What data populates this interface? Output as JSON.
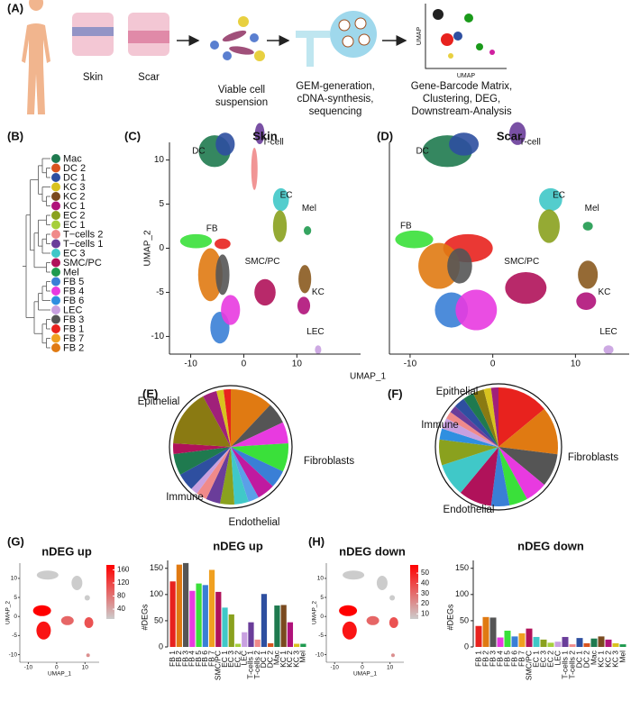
{
  "panel_labels": [
    "(A)",
    "(B)",
    "(C)",
    "(D)",
    "(E)",
    "(F)",
    "(G)",
    "(H)"
  ],
  "workflow": {
    "skin": "Skin",
    "scar": "Scar",
    "step1": [
      "Viable cell",
      "suspension"
    ],
    "step2": [
      "GEM-generation,",
      "cDNA-synthesis,",
      "sequencing"
    ],
    "step3": [
      "Gene-Barcode Matrix,",
      "Clustering, DEG,",
      "Downstream-Analysis"
    ],
    "umap_x": "UMAP",
    "umap_y": "UMAP"
  },
  "clusters": [
    {
      "name": "Mac",
      "color": "#1f7a4f"
    },
    {
      "name": "DC 2",
      "color": "#d9541e"
    },
    {
      "name": "DC 1",
      "color": "#2e4fa0"
    },
    {
      "name": "KC 3",
      "color": "#d8c21e"
    },
    {
      "name": "KC 2",
      "color": "#7a4a1f"
    },
    {
      "name": "KC 1",
      "color": "#b0127a"
    },
    {
      "name": "EC 2",
      "color": "#8aa11e"
    },
    {
      "name": "EC 1",
      "color": "#a6cf3c"
    },
    {
      "name": "T−cells 2",
      "color": "#f08a8a"
    },
    {
      "name": "T−cells 1",
      "color": "#6a3d9a"
    },
    {
      "name": "EC 3",
      "color": "#40c8c8"
    },
    {
      "name": "SMC/PC",
      "color": "#b0125a"
    },
    {
      "name": "Mel",
      "color": "#1f9a4f"
    },
    {
      "name": "FB 5",
      "color": "#3a7fd6"
    },
    {
      "name": "FB 4",
      "color": "#e83ae0"
    },
    {
      "name": "FB 6",
      "color": "#2f8fe0"
    },
    {
      "name": "LEC",
      "color": "#c8a0e0"
    },
    {
      "name": "FB 3",
      "color": "#555555"
    },
    {
      "name": "FB 1",
      "color": "#e8221e"
    },
    {
      "name": "FB 7",
      "color": "#f0a020"
    },
    {
      "name": "FB 2",
      "color": "#e07a12"
    }
  ],
  "chart_data": [
    {
      "type": "umap",
      "title": "Skin",
      "xlabel": "UMAP_1",
      "ylabel": "UMAP_2",
      "xlim": [
        -14,
        22
      ],
      "ylim": [
        -12,
        12
      ],
      "xticks": [
        -10,
        0,
        10
      ],
      "yticks": [
        -10,
        -5,
        0,
        5,
        10
      ],
      "annotations": [
        "DC",
        "T-cell",
        "EC",
        "Mel",
        "FB",
        "SMC/PC",
        "KC",
        "LEC"
      ]
    },
    {
      "type": "umap",
      "title": "Scar",
      "xlim": [
        -12.5,
        16.5
      ],
      "ylim": [
        -12,
        12
      ],
      "xticks": [
        -10,
        0,
        10
      ],
      "annotations": [
        "DC",
        "T-cell",
        "EC",
        "Mel",
        "FB",
        "SMC/PC",
        "KC",
        "LEC"
      ]
    },
    {
      "type": "pie",
      "values": [
        12,
        6,
        6,
        8,
        5,
        5,
        3,
        4,
        4,
        4,
        3,
        2,
        5,
        6,
        3,
        16,
        4,
        2,
        2
      ],
      "colors": [
        "#e07a12",
        "#555555",
        "#e83ae0",
        "#3ae03a",
        "#3a7fd6",
        "#c01aa0",
        "#5aa0e8",
        "#40c8c8",
        "#8aa11e",
        "#6a3d9a",
        "#f08a8a",
        "#c8a0e0",
        "#2e4fa0",
        "#1f7a4f",
        "#b0125a",
        "#8a7a12",
        "#a0207a",
        "#d8c21e",
        "#e8221e"
      ],
      "annotations": [
        "Epithelial",
        "Fibroblasts",
        "Immune",
        "Endothelial"
      ]
    },
    {
      "type": "pie",
      "values": [
        14,
        13,
        9,
        6,
        5,
        5,
        9,
        9,
        7,
        3,
        3,
        2,
        2,
        3,
        3,
        3,
        2,
        2
      ],
      "colors": [
        "#e8221e",
        "#e07a12",
        "#555555",
        "#e83ae0",
        "#3ae03a",
        "#3a7fd6",
        "#b0125a",
        "#40c8c8",
        "#8aa11e",
        "#2f8fe0",
        "#c8a0e0",
        "#f08a8a",
        "#6a3d9a",
        "#2e4fa0",
        "#1f7a4f",
        "#8a7a12",
        "#d8c21e",
        "#a0207a"
      ],
      "annotations": [
        "Epithelial",
        "Immune",
        "Fibroblasts",
        "Endothelial"
      ]
    },
    {
      "type": "feature",
      "title": "nDEG up",
      "xlabel": "UMAP_1",
      "ylabel": "UMAP_2",
      "xlim": [
        -13,
        15
      ],
      "ylim": [
        -12,
        14
      ],
      "xticks": [
        -10,
        0,
        10
      ],
      "yticks": [
        -10,
        -5,
        0,
        5,
        10
      ],
      "colors": [
        "#cccccc",
        "#ff0000"
      ],
      "clim": [
        10,
        175
      ],
      "cticks": [
        40,
        80,
        120,
        160
      ]
    },
    {
      "type": "bar",
      "title": "nDEG up",
      "ylabel": "#DEGs",
      "categories": [
        "FB 1",
        "FB 2",
        "FB 3",
        "FB 4",
        "FB 5",
        "FB 6",
        "FB 7",
        "SMC/PC",
        "EC 1",
        "EC 3",
        "EC 2",
        "LEC",
        "T-cells 1",
        "T-cells 2",
        "DC 1",
        "DC 2",
        "Mac",
        "KC 1",
        "KC 2",
        "KC 3",
        "Mel"
      ],
      "values": [
        125,
        157,
        160,
        107,
        121,
        118,
        147,
        105,
        75,
        62,
        6,
        28,
        47,
        14,
        101,
        7,
        79,
        80,
        47,
        6,
        6
      ],
      "colors": [
        "#e8221e",
        "#e07a12",
        "#555555",
        "#e83ae0",
        "#3ae03a",
        "#3a7fd6",
        "#f0a020",
        "#b0125a",
        "#40c8c8",
        "#8aa11e",
        "#a6cf3c",
        "#c8a0e0",
        "#6a3d9a",
        "#f08a8a",
        "#2e4fa0",
        "#d9541e",
        "#1f7a4f",
        "#7a4a1f",
        "#b0127a",
        "#d8c21e",
        "#1f9a4f"
      ],
      "ylim": [
        0,
        165
      ],
      "yticks": [
        0,
        50,
        100,
        150
      ]
    },
    {
      "type": "feature",
      "title": "nDEG down",
      "xlabel": "UMAP_1",
      "ylabel": "UMAP_2",
      "xlim": [
        -13,
        15
      ],
      "ylim": [
        -12,
        14
      ],
      "xticks": [
        -10,
        0,
        10
      ],
      "yticks": [
        -10,
        -5,
        0,
        5,
        10
      ],
      "colors": [
        "#cccccc",
        "#ff0000"
      ],
      "clim": [
        5,
        58
      ],
      "cticks": [
        10,
        20,
        30,
        40,
        50
      ]
    },
    {
      "type": "bar",
      "title": "nDEG down",
      "ylabel": "#DEGs",
      "categories": [
        "FB 1",
        "FB 2",
        "FB 3",
        "FB 4",
        "FB 5",
        "FB 6",
        "FB 7",
        "SMC/PC",
        "EC 1",
        "EC 3",
        "EC 2",
        "LEC",
        "T-cells 1",
        "T-cells 2",
        "DC 1",
        "DC 2",
        "Mac",
        "KC 1",
        "KC 2",
        "KC 3",
        "Mel"
      ],
      "values": [
        40,
        57,
        56,
        18,
        31,
        20,
        26,
        35,
        19,
        14,
        8,
        10,
        19,
        5,
        17,
        7,
        16,
        20,
        14,
        7,
        5
      ],
      "colors": [
        "#e8221e",
        "#e07a12",
        "#555555",
        "#e83ae0",
        "#3ae03a",
        "#3a7fd6",
        "#f0a020",
        "#b0125a",
        "#40c8c8",
        "#8aa11e",
        "#a6cf3c",
        "#c8a0e0",
        "#6a3d9a",
        "#f08a8a",
        "#2e4fa0",
        "#d9541e",
        "#1f7a4f",
        "#7a4a1f",
        "#b0127a",
        "#d8c21e",
        "#1f9a4f"
      ],
      "ylim": [
        0,
        165
      ],
      "yticks": [
        0,
        50,
        100,
        150
      ]
    }
  ]
}
